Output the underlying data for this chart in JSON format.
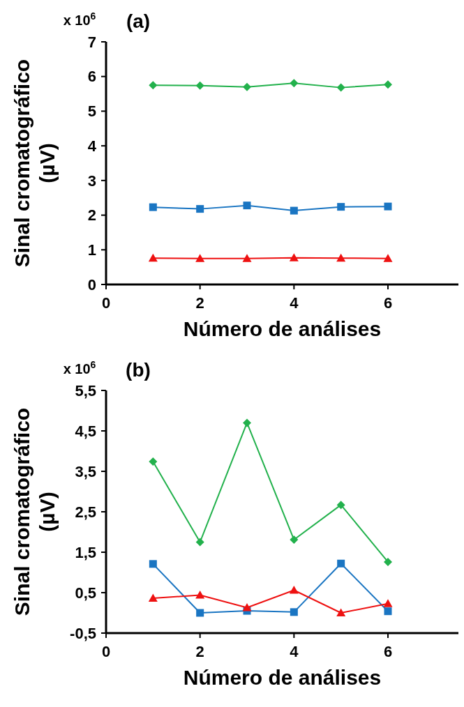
{
  "chart_data": [
    {
      "type": "line",
      "title": "(a)",
      "xlabel": "Número de análises",
      "ylabel": "Sinal cromatográfico (µV)",
      "annotations": [
        "x 10$^{6}$"
      ],
      "xlim": [
        0,
        7.5
      ],
      "xticks": [
        0,
        2,
        4,
        6
      ],
      "ylim": [
        0,
        7
      ],
      "yticks": [
        0,
        1,
        2,
        3,
        4,
        5,
        6,
        7
      ],
      "grid": false,
      "line_style": "solid",
      "series": [
        {
          "x": [
            1,
            2,
            3,
            4,
            5,
            6
          ],
          "color": "#22b14c",
          "marker": "diamond",
          "values": [
            5.75,
            5.74,
            5.7,
            5.81,
            5.68,
            5.77
          ]
        },
        {
          "x": [
            1,
            2,
            3,
            4,
            5,
            6
          ],
          "color": "#1a75c2",
          "marker": "square",
          "values": [
            2.23,
            2.18,
            2.28,
            2.13,
            2.24,
            2.25
          ]
        },
        {
          "x": [
            1,
            2,
            3,
            4,
            5,
            6
          ],
          "color": "#ee1111",
          "marker": "triangle",
          "values": [
            0.76,
            0.75,
            0.75,
            0.77,
            0.76,
            0.75
          ]
        }
      ]
    },
    {
      "type": "line",
      "title": "(b)",
      "xlabel": "Número de análises",
      "ylabel": "Sinal cromatográfico (µV)",
      "annotations": [
        "x 10$^{6}$"
      ],
      "xlim": [
        0,
        7.5
      ],
      "xticks": [
        0,
        2,
        4,
        6
      ],
      "ylim": [
        -0.5,
        5.5
      ],
      "yticks": [
        {
          "value": -0.5,
          "label": "-0,5"
        },
        {
          "value": 0.5,
          "label": "0,5"
        },
        {
          "value": 1.5,
          "label": "1,5"
        },
        {
          "value": 2.5,
          "label": "2,5"
        },
        {
          "value": 3.5,
          "label": "3,5"
        },
        {
          "value": 4.5,
          "label": "4,5"
        },
        {
          "value": 5.5,
          "label": "5,5"
        }
      ],
      "grid": false,
      "line_style": "solid",
      "series": [
        {
          "x": [
            1,
            2,
            3,
            4,
            5,
            6
          ],
          "color": "#22b14c",
          "marker": "diamond",
          "values": [
            3.74,
            1.75,
            4.7,
            1.81,
            2.67,
            1.26
          ]
        },
        {
          "x": [
            1,
            2,
            3,
            4,
            5,
            6
          ],
          "color": "#1a75c2",
          "marker": "square",
          "values": [
            1.21,
            0.0,
            0.05,
            0.02,
            1.22,
            0.04
          ]
        },
        {
          "x": [
            1,
            2,
            3,
            4,
            5,
            6
          ],
          "color": "#ee1111",
          "marker": "triangle",
          "values": [
            0.36,
            0.44,
            0.13,
            0.56,
            0.0,
            0.23
          ]
        }
      ]
    }
  ]
}
